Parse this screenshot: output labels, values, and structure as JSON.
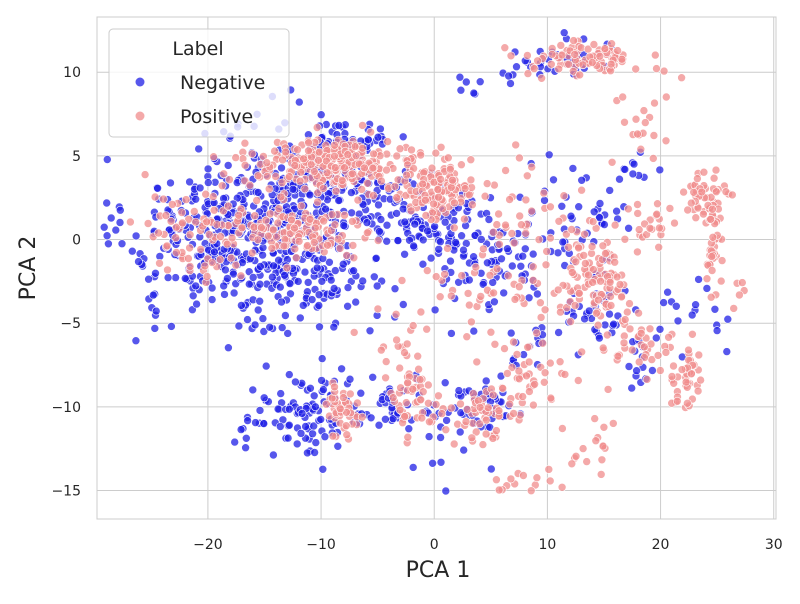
{
  "chart_data": {
    "type": "scatter",
    "xlabel": "PCA 1",
    "ylabel": "PCA 2",
    "xlim": [
      -29.8,
      30.2
    ],
    "ylim": [
      -16.7,
      13.3
    ],
    "x_ticks": [
      -20,
      -10,
      0,
      10,
      20,
      30
    ],
    "y_ticks": [
      -15,
      -10,
      -5,
      0,
      5,
      10
    ],
    "x_tick_labels": [
      "−20",
      "−10",
      "0",
      "10",
      "20",
      "30"
    ],
    "y_tick_labels": [
      "−15",
      "−10",
      "−5",
      "0",
      "5",
      "10"
    ],
    "grid": true,
    "legend": {
      "title": "Label",
      "placement": "top-left",
      "entries": [
        "Negative",
        "Positive"
      ]
    },
    "colors": {
      "Negative": "#1f1fe6",
      "Positive": "#f08c8c",
      "grid": "#cccccc",
      "axes": "#cccccc"
    },
    "series": [
      {
        "name": "Negative",
        "clusters": [
          {
            "cx": -18,
            "cy": 0.5,
            "sx": 4.5,
            "sy": 2.2,
            "n": 320
          },
          {
            "cx": -10,
            "cy": 3.5,
            "sx": 4.0,
            "sy": 1.8,
            "n": 220
          },
          {
            "cx": -12,
            "cy": -1.5,
            "sx": 4.0,
            "sy": 2.0,
            "n": 180
          },
          {
            "cx": -7,
            "cy": 6.0,
            "sx": 1.5,
            "sy": 0.5,
            "n": 35
          },
          {
            "cx": -2,
            "cy": 1.5,
            "sx": 2.0,
            "sy": 1.2,
            "n": 60
          },
          {
            "cx": 2,
            "cy": 0.0,
            "sx": 2.0,
            "sy": 1.5,
            "n": 60
          },
          {
            "cx": -11,
            "cy": -10.5,
            "sx": 3.0,
            "sy": 1.2,
            "n": 110
          },
          {
            "cx": -3,
            "cy": -10.0,
            "sx": 2.0,
            "sy": 0.8,
            "n": 40
          },
          {
            "cx": 4.5,
            "cy": -10.0,
            "sx": 1.5,
            "sy": 0.8,
            "n": 40
          },
          {
            "cx": 7,
            "cy": -1.5,
            "sx": 2.5,
            "sy": 1.8,
            "n": 70
          },
          {
            "cx": 13,
            "cy": 2.0,
            "sx": 2.0,
            "sy": 1.5,
            "n": 35
          },
          {
            "cx": 14,
            "cy": -4.0,
            "sx": 1.5,
            "sy": 1.2,
            "n": 35
          },
          {
            "cx": 12,
            "cy": 10.8,
            "sx": 2.5,
            "sy": 0.6,
            "n": 40
          },
          {
            "cx": 5,
            "cy": 9.5,
            "sx": 1.5,
            "sy": 0.5,
            "n": 10
          },
          {
            "cx": 18,
            "cy": -7.0,
            "sx": 1.5,
            "sy": 1.2,
            "n": 20
          },
          {
            "cx": 23,
            "cy": -4.0,
            "sx": 2.0,
            "sy": 1.5,
            "n": 15
          },
          {
            "cx": -25,
            "cy": -3.0,
            "sx": 0.8,
            "sy": 1.5,
            "n": 12
          },
          {
            "cx": 8,
            "cy": -7.0,
            "sx": 1.5,
            "sy": 1.0,
            "n": 12
          },
          {
            "cx": 2,
            "cy": -12.0,
            "sx": 2.0,
            "sy": 1.0,
            "n": 10
          },
          {
            "cx": 18,
            "cy": 4.0,
            "sx": 1.0,
            "sy": 0.8,
            "n": 10
          }
        ]
      },
      {
        "name": "Positive",
        "clusters": [
          {
            "cx": -9,
            "cy": 4.5,
            "sx": 4.0,
            "sy": 0.7,
            "n": 260
          },
          {
            "cx": 0,
            "cy": 3.0,
            "sx": 2.0,
            "sy": 0.8,
            "n": 120
          },
          {
            "cx": -12,
            "cy": 0.5,
            "sx": 3.0,
            "sy": 1.0,
            "n": 120
          },
          {
            "cx": -20,
            "cy": 0.0,
            "sx": 3.0,
            "sy": 1.5,
            "n": 80
          },
          {
            "cx": 13,
            "cy": 10.8,
            "sx": 2.5,
            "sy": 0.5,
            "n": 90
          },
          {
            "cx": 14,
            "cy": -2.5,
            "sx": 2.0,
            "sy": 1.3,
            "n": 110
          },
          {
            "cx": 24,
            "cy": 2.5,
            "sx": 1.0,
            "sy": 0.8,
            "n": 50
          },
          {
            "cx": 24.5,
            "cy": -0.5,
            "sx": 0.4,
            "sy": 1.2,
            "n": 30
          },
          {
            "cx": 22.5,
            "cy": -8.5,
            "sx": 0.6,
            "sy": 1.0,
            "n": 35
          },
          {
            "cx": -8,
            "cy": -10.3,
            "sx": 1.0,
            "sy": 0.8,
            "n": 45
          },
          {
            "cx": -1.5,
            "cy": -9.5,
            "sx": 1.0,
            "sy": 1.2,
            "n": 50
          },
          {
            "cx": 4.5,
            "cy": -10.5,
            "sx": 1.5,
            "sy": 0.8,
            "n": 55
          },
          {
            "cx": 8,
            "cy": -8.0,
            "sx": 1.5,
            "sy": 1.0,
            "n": 35
          },
          {
            "cx": 18,
            "cy": -6.5,
            "sx": 2.0,
            "sy": 1.0,
            "n": 40
          },
          {
            "cx": 9,
            "cy": 2.0,
            "sx": 3.0,
            "sy": 1.5,
            "n": 35
          },
          {
            "cx": 5,
            "cy": -2.5,
            "sx": 3.0,
            "sy": 2.0,
            "n": 50
          },
          {
            "cx": 19,
            "cy": 1.0,
            "sx": 1.5,
            "sy": 0.8,
            "n": 25
          },
          {
            "cx": 14.5,
            "cy": -12.0,
            "sx": 1.0,
            "sy": 1.2,
            "n": 15
          },
          {
            "cx": 8,
            "cy": -14.5,
            "sx": 2.5,
            "sy": 0.6,
            "n": 15
          },
          {
            "cx": 19,
            "cy": 7.0,
            "sx": 1.5,
            "sy": 1.5,
            "n": 20
          },
          {
            "cx": 26,
            "cy": -3.0,
            "sx": 1.0,
            "sy": 0.5,
            "n": 8
          },
          {
            "cx": -4,
            "cy": -6.0,
            "sx": 1.5,
            "sy": 1.0,
            "n": 15
          }
        ]
      }
    ]
  }
}
